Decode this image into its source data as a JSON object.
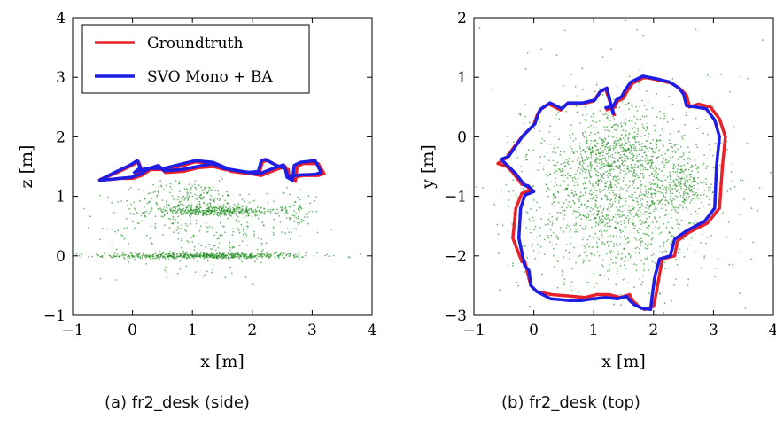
{
  "captions": {
    "a": "(a)  fr2_desk (side)",
    "b": "(b)  fr2_desk (top)"
  },
  "colors": {
    "groundtruth": "#e8212a",
    "estimate": "#1d1de6",
    "points": "#1a8a1a"
  },
  "chart_data": [
    {
      "type": "line",
      "view": "side",
      "xlabel": "x [m]",
      "ylabel": "z [m]",
      "xlim": [
        -1,
        4
      ],
      "ylim": [
        -1,
        4
      ],
      "xticks": [
        "−1",
        "0",
        "1",
        "2",
        "3",
        "4"
      ],
      "yticks": [
        "−1",
        "0",
        "1",
        "2",
        "3",
        "4"
      ],
      "grid": false,
      "legend": {
        "placement": "top-left",
        "entries": [
          "Groundtruth",
          "SVO Mono + BA"
        ]
      },
      "series": [
        {
          "name": "Groundtruth",
          "color": "#e8212a",
          "x": [
            -0.55,
            -0.3,
            -0.05,
            0.1,
            0.15,
            0.05,
            0.25,
            0.55,
            0.85,
            1.05,
            1.35,
            1.65,
            1.95,
            2.12,
            2.17,
            2.25,
            2.45,
            2.6,
            2.62,
            2.72,
            2.75,
            2.85,
            3.1,
            3.2,
            3.1,
            2.85,
            2.62,
            2.55,
            2.4,
            2.15,
            1.85,
            1.55,
            1.35,
            1.1,
            0.85,
            0.55,
            0.45,
            0.3,
            0.15,
            0.0,
            -0.2,
            -0.4,
            -0.55
          ],
          "y": [
            1.28,
            1.38,
            1.5,
            1.58,
            1.45,
            1.38,
            1.45,
            1.45,
            1.52,
            1.58,
            1.55,
            1.42,
            1.38,
            1.4,
            1.58,
            1.6,
            1.5,
            1.45,
            1.3,
            1.25,
            1.5,
            1.55,
            1.55,
            1.38,
            1.35,
            1.35,
            1.3,
            1.5,
            1.45,
            1.35,
            1.4,
            1.45,
            1.5,
            1.48,
            1.42,
            1.4,
            1.5,
            1.45,
            1.35,
            1.3,
            1.3,
            1.28,
            1.28
          ]
        },
        {
          "name": "SVO Mono + BA",
          "color": "#1d1de6",
          "x": [
            -0.57,
            -0.3,
            -0.05,
            0.08,
            0.13,
            0.03,
            0.23,
            0.53,
            0.85,
            1.05,
            1.35,
            1.63,
            1.93,
            2.1,
            2.15,
            2.22,
            2.4,
            2.55,
            2.58,
            2.67,
            2.7,
            2.8,
            3.05,
            3.15,
            3.05,
            2.8,
            2.6,
            2.52,
            2.38,
            2.12,
            1.83,
            1.53,
            1.33,
            1.08,
            0.82,
            0.53,
            0.43,
            0.28,
            0.13,
            -0.02,
            -0.22,
            -0.42,
            -0.57
          ],
          "y": [
            1.26,
            1.4,
            1.52,
            1.6,
            1.48,
            1.4,
            1.47,
            1.47,
            1.55,
            1.6,
            1.57,
            1.45,
            1.4,
            1.42,
            1.6,
            1.62,
            1.52,
            1.47,
            1.32,
            1.27,
            1.52,
            1.57,
            1.6,
            1.4,
            1.37,
            1.36,
            1.33,
            1.53,
            1.48,
            1.38,
            1.42,
            1.47,
            1.55,
            1.5,
            1.45,
            1.43,
            1.52,
            1.47,
            1.37,
            1.32,
            1.3,
            1.28,
            1.26
          ]
        }
      ]
    },
    {
      "type": "line",
      "view": "top",
      "xlabel": "x [m]",
      "ylabel": "y [m]",
      "xlim": [
        -1,
        4
      ],
      "ylim": [
        -3,
        2
      ],
      "xticks": [
        "−1",
        "0",
        "1",
        "2",
        "3",
        "4"
      ],
      "yticks": [
        "−3",
        "−2",
        "−1",
        "0",
        "1",
        "2"
      ],
      "grid": false,
      "legend": null,
      "series": [
        {
          "name": "Groundtruth",
          "color": "#e8212a",
          "x": [
            1.2,
            1.35,
            1.4,
            1.5,
            1.55,
            1.65,
            1.85,
            2.1,
            2.3,
            2.45,
            2.55,
            2.6,
            2.75,
            2.95,
            3.1,
            3.2,
            3.15,
            3.1,
            2.9,
            2.6,
            2.4,
            2.35,
            2.15,
            2.1,
            2.05,
            2.0,
            1.85,
            1.75,
            1.65,
            1.6,
            1.45,
            1.25,
            1.05,
            0.85,
            0.65,
            0.3,
            0.05,
            -0.05,
            -0.1,
            -0.15,
            -0.2,
            -0.35,
            -0.3,
            -0.2,
            -0.05,
            -0.15,
            -0.2,
            -0.35,
            -0.45,
            -0.6,
            -0.45,
            -0.35,
            -0.2,
            0.0,
            0.05,
            0.1,
            0.25,
            0.45,
            0.55,
            0.8,
            1.0,
            1.1,
            1.2,
            1.35
          ],
          "y": [
            0.45,
            0.5,
            0.6,
            0.65,
            0.75,
            0.9,
            1.0,
            0.95,
            0.9,
            0.8,
            0.7,
            0.5,
            0.55,
            0.5,
            0.3,
            0.0,
            -0.5,
            -1.2,
            -1.45,
            -1.6,
            -1.75,
            -2.0,
            -2.05,
            -2.3,
            -2.6,
            -2.85,
            -2.9,
            -2.85,
            -2.75,
            -2.65,
            -2.7,
            -2.65,
            -2.65,
            -2.7,
            -2.68,
            -2.65,
            -2.6,
            -2.5,
            -2.3,
            -2.1,
            -2.1,
            -1.7,
            -1.2,
            -0.95,
            -0.9,
            -0.8,
            -0.8,
            -0.6,
            -0.5,
            -0.45,
            -0.35,
            -0.2,
            0.0,
            0.2,
            0.35,
            0.45,
            0.55,
            0.45,
            0.55,
            0.55,
            0.6,
            0.75,
            0.8,
            0.35
          ]
        },
        {
          "name": "SVO Mono + BA",
          "color": "#1d1de6",
          "x": [
            1.18,
            1.33,
            1.38,
            1.47,
            1.52,
            1.62,
            1.82,
            2.07,
            2.27,
            2.42,
            2.5,
            2.55,
            2.7,
            2.88,
            3.02,
            3.1,
            3.05,
            3.02,
            2.85,
            2.55,
            2.35,
            2.28,
            2.1,
            2.02,
            1.98,
            1.95,
            1.8,
            1.68,
            1.6,
            1.55,
            1.4,
            1.2,
            1.0,
            0.8,
            0.6,
            0.28,
            0.05,
            -0.05,
            -0.08,
            -0.12,
            -0.15,
            -0.25,
            -0.22,
            -0.15,
            0.0,
            -0.1,
            -0.15,
            -0.3,
            -0.4,
            -0.55,
            -0.42,
            -0.32,
            -0.18,
            0.02,
            0.07,
            0.12,
            0.27,
            0.47,
            0.57,
            0.82,
            1.02,
            1.12,
            1.22,
            1.33
          ],
          "y": [
            0.48,
            0.52,
            0.62,
            0.68,
            0.78,
            0.92,
            1.02,
            0.97,
            0.92,
            0.82,
            0.72,
            0.52,
            0.5,
            0.47,
            0.28,
            0.0,
            -0.5,
            -1.2,
            -1.42,
            -1.58,
            -1.72,
            -2.0,
            -2.05,
            -2.35,
            -2.65,
            -2.9,
            -2.88,
            -2.82,
            -2.75,
            -2.68,
            -2.72,
            -2.7,
            -2.72,
            -2.75,
            -2.75,
            -2.72,
            -2.6,
            -2.5,
            -2.25,
            -2.2,
            -2.18,
            -1.7,
            -1.2,
            -0.98,
            -0.92,
            -0.82,
            -0.82,
            -0.62,
            -0.52,
            -0.38,
            -0.33,
            -0.18,
            0.02,
            0.22,
            0.37,
            0.47,
            0.57,
            0.47,
            0.57,
            0.57,
            0.62,
            0.77,
            0.82,
            0.37
          ]
        }
      ]
    }
  ]
}
